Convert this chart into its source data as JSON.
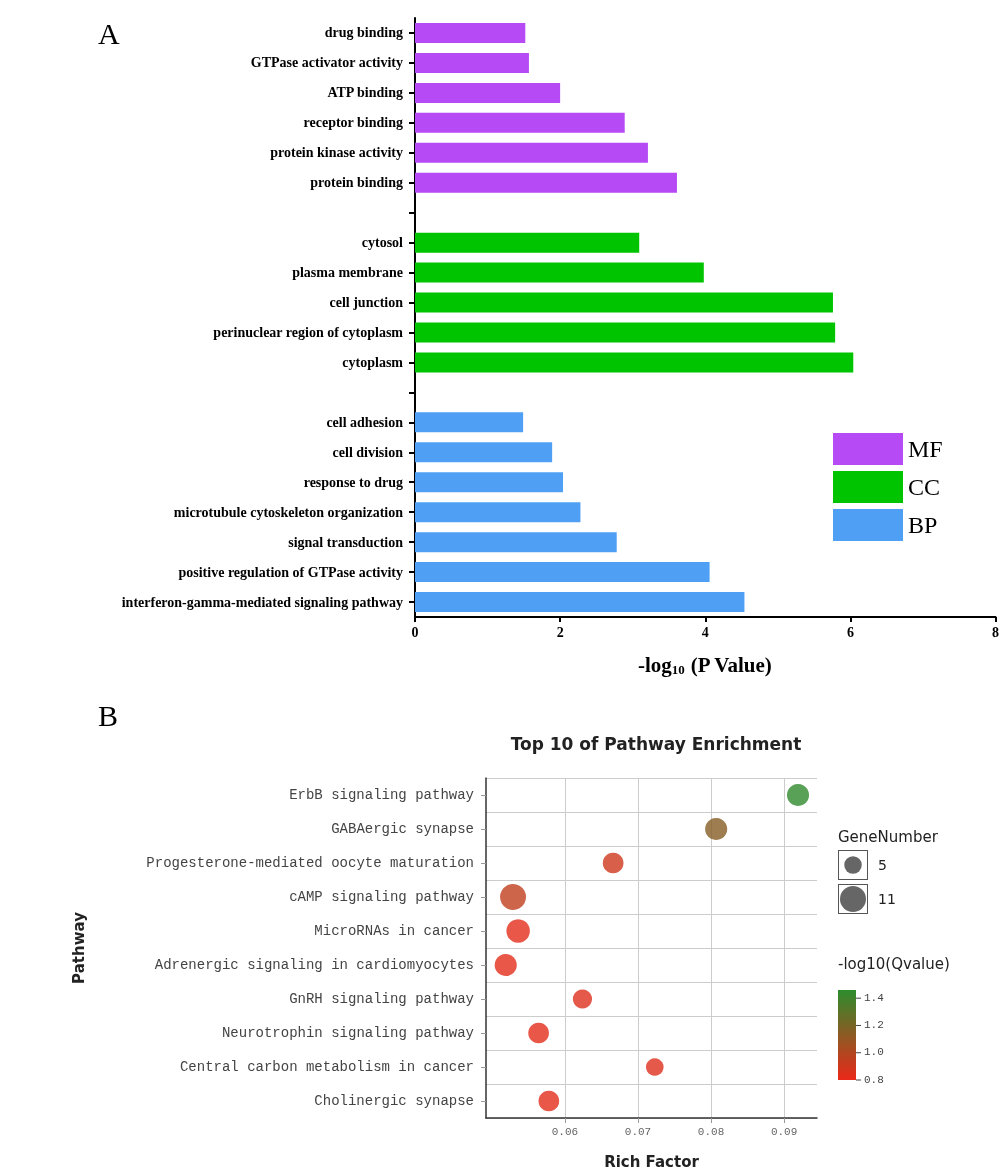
{
  "chart_data": [
    {
      "type": "bar",
      "orientation": "horizontal",
      "annotations": [
        "A"
      ],
      "xlabel": "-log$_{10}$ (P Value)",
      "categories": [
        "drug binding",
        "GTPase activator activity",
        "ATP binding",
        "receptor binding",
        "protein kinase activity",
        "protein binding",
        null,
        "cytosol",
        "plasma membrane",
        "cell junction",
        "perinuclear region of cytoplasm",
        "cytoplasm",
        null,
        "cell adhesion",
        "cell division",
        "response to drug",
        "microtubule cytoskeleton organization",
        "signal transduction",
        "positive regulation of GTPase activity",
        "interferon-gamma-mediated signaling pathway"
      ],
      "series": [
        {
          "name": "MF",
          "color": "#b64af5",
          "values": [
            1.52,
            1.57,
            2.0,
            2.89,
            3.21,
            3.61,
            null,
            null,
            null,
            null,
            null,
            null,
            null,
            null,
            null,
            null,
            null,
            null,
            null,
            null
          ]
        },
        {
          "name": "CC",
          "color": "#00c400",
          "values": [
            null,
            null,
            null,
            null,
            null,
            null,
            null,
            3.09,
            3.98,
            5.76,
            5.79,
            6.04,
            null,
            null,
            null,
            null,
            null,
            null,
            null,
            null
          ]
        },
        {
          "name": "BP",
          "color": "#4fa0f5",
          "values": [
            null,
            null,
            null,
            null,
            null,
            null,
            null,
            null,
            null,
            null,
            null,
            null,
            null,
            1.49,
            1.89,
            2.04,
            2.28,
            2.78,
            4.06,
            4.54
          ]
        }
      ],
      "xlim": [
        0,
        8
      ],
      "xticks": [
        0,
        2,
        4,
        6,
        8
      ],
      "grid": false,
      "legend": "right"
    },
    {
      "type": "bubble",
      "orientation": "horizontal",
      "annotations": [
        "B"
      ],
      "title": "Top 10 of Pathway Enrichment",
      "xlabel": "Rich Factor",
      "ylabel": "Pathway",
      "legend_title": "GeneNumber",
      "clabel": "-log10(Qvalue)",
      "categories": [
        "ErbB signaling pathway",
        "GABAergic synapse",
        "Progesterone-mediated oocyte maturation",
        "cAMP signaling pathway",
        "MicroRNAs in cancer",
        "Adrenergic signaling in cardiomyocytes",
        "GnRH signaling pathway",
        "Neurotrophin signaling pathway",
        "Central carbon metabolism in cancer",
        "Cholinergic synapse"
      ],
      "values": [
        0.0919,
        0.0807,
        0.0666,
        0.0529,
        0.0536,
        0.0519,
        0.0624,
        0.0564,
        0.0723,
        0.0578
      ],
      "sizes": [
        8,
        8,
        7,
        11,
        9,
        8,
        6,
        7,
        5,
        7
      ],
      "cvalues": [
        1.45,
        1.15,
        0.9,
        0.95,
        0.83,
        0.83,
        0.85,
        0.83,
        0.85,
        0.83
      ],
      "size_legend": [
        5,
        11
      ],
      "clim": [
        0.8,
        1.46
      ],
      "cticks": [
        {
          "value": 0.8,
          "label": "0.8"
        },
        {
          "value": 1.0,
          "label": "1.0"
        },
        {
          "value": 1.2,
          "label": "1.2"
        },
        {
          "value": 1.4,
          "label": "1.4"
        }
      ],
      "xlim": [
        0.0492,
        0.0945
      ],
      "xticks": [
        {
          "value": 0.06,
          "label": "0.06"
        },
        {
          "value": 0.07,
          "label": "0.07"
        },
        {
          "value": 0.08,
          "label": "0.08"
        },
        {
          "value": 0.09,
          "label": "0.09"
        }
      ],
      "grid": true
    }
  ]
}
